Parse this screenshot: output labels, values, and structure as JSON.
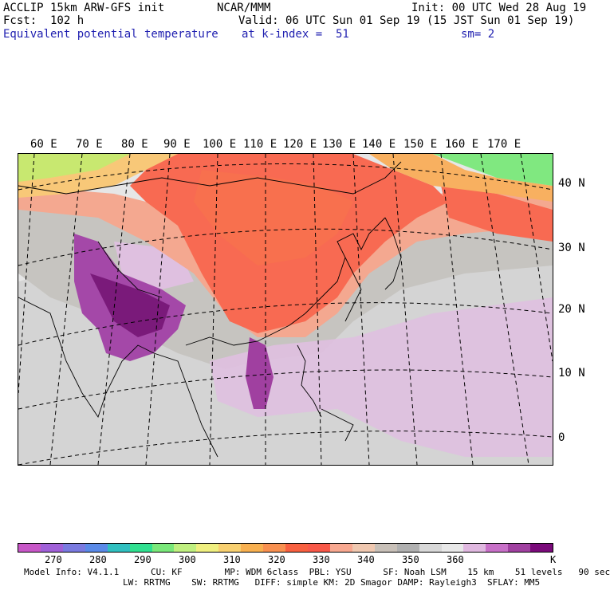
{
  "header": {
    "left1": "ACCLIP 15km ARW-GFS init",
    "left2": "Fcst:  102 h",
    "left3": "Equivalent potential temperature",
    "center1": "NCAR/MMM",
    "init": "Init: 00 UTC Wed 28 Aug 19",
    "valid": "Valid: 06 UTC Sun 01 Sep 19 (15 JST Sun 01 Sep 19)",
    "kindex": "at k-index =  51",
    "sm": "sm= 2"
  },
  "map": {
    "lon_labels": [
      "60 E",
      "70 E",
      "80 E",
      "90 E",
      "100 E",
      "110 E",
      "120 E",
      "130 E",
      "140 E",
      "150 E",
      "160 E",
      "170 E"
    ],
    "lat_labels": [
      "40 N",
      "30 N",
      "20 N",
      "10 N",
      "0"
    ]
  },
  "colorbar": {
    "colors": [
      "#c857c8",
      "#a060d8",
      "#7a7ae0",
      "#5a8ae8",
      "#30c0c0",
      "#30e090",
      "#7ae87a",
      "#c0f080",
      "#f0f080",
      "#f8d070",
      "#f8b050",
      "#f89050",
      "#f86040",
      "#f85848",
      "#f8a890",
      "#f0c8b0",
      "#c8c0b8",
      "#b0b0b0",
      "#d8d8d8",
      "#e8e8e8",
      "#e0b8e0",
      "#c870c8",
      "#a040a0",
      "#7a0a7a"
    ],
    "labels": [
      "270",
      "280",
      "290",
      "300",
      "310",
      "320",
      "330",
      "340",
      "350",
      "360"
    ],
    "unit": "K"
  },
  "footer": {
    "line1": "Model Info: V4.1.1      CU: KF        MP: WDM 6class  PBL: YSU      SF: Noah LSM    15 km    51 levels   90 sec",
    "line2": "LW: RRTMG    SW: RRTMG   DIFF: simple KM: 2D Smagor DAMP: Rayleigh3  SFLAY: MM5"
  }
}
